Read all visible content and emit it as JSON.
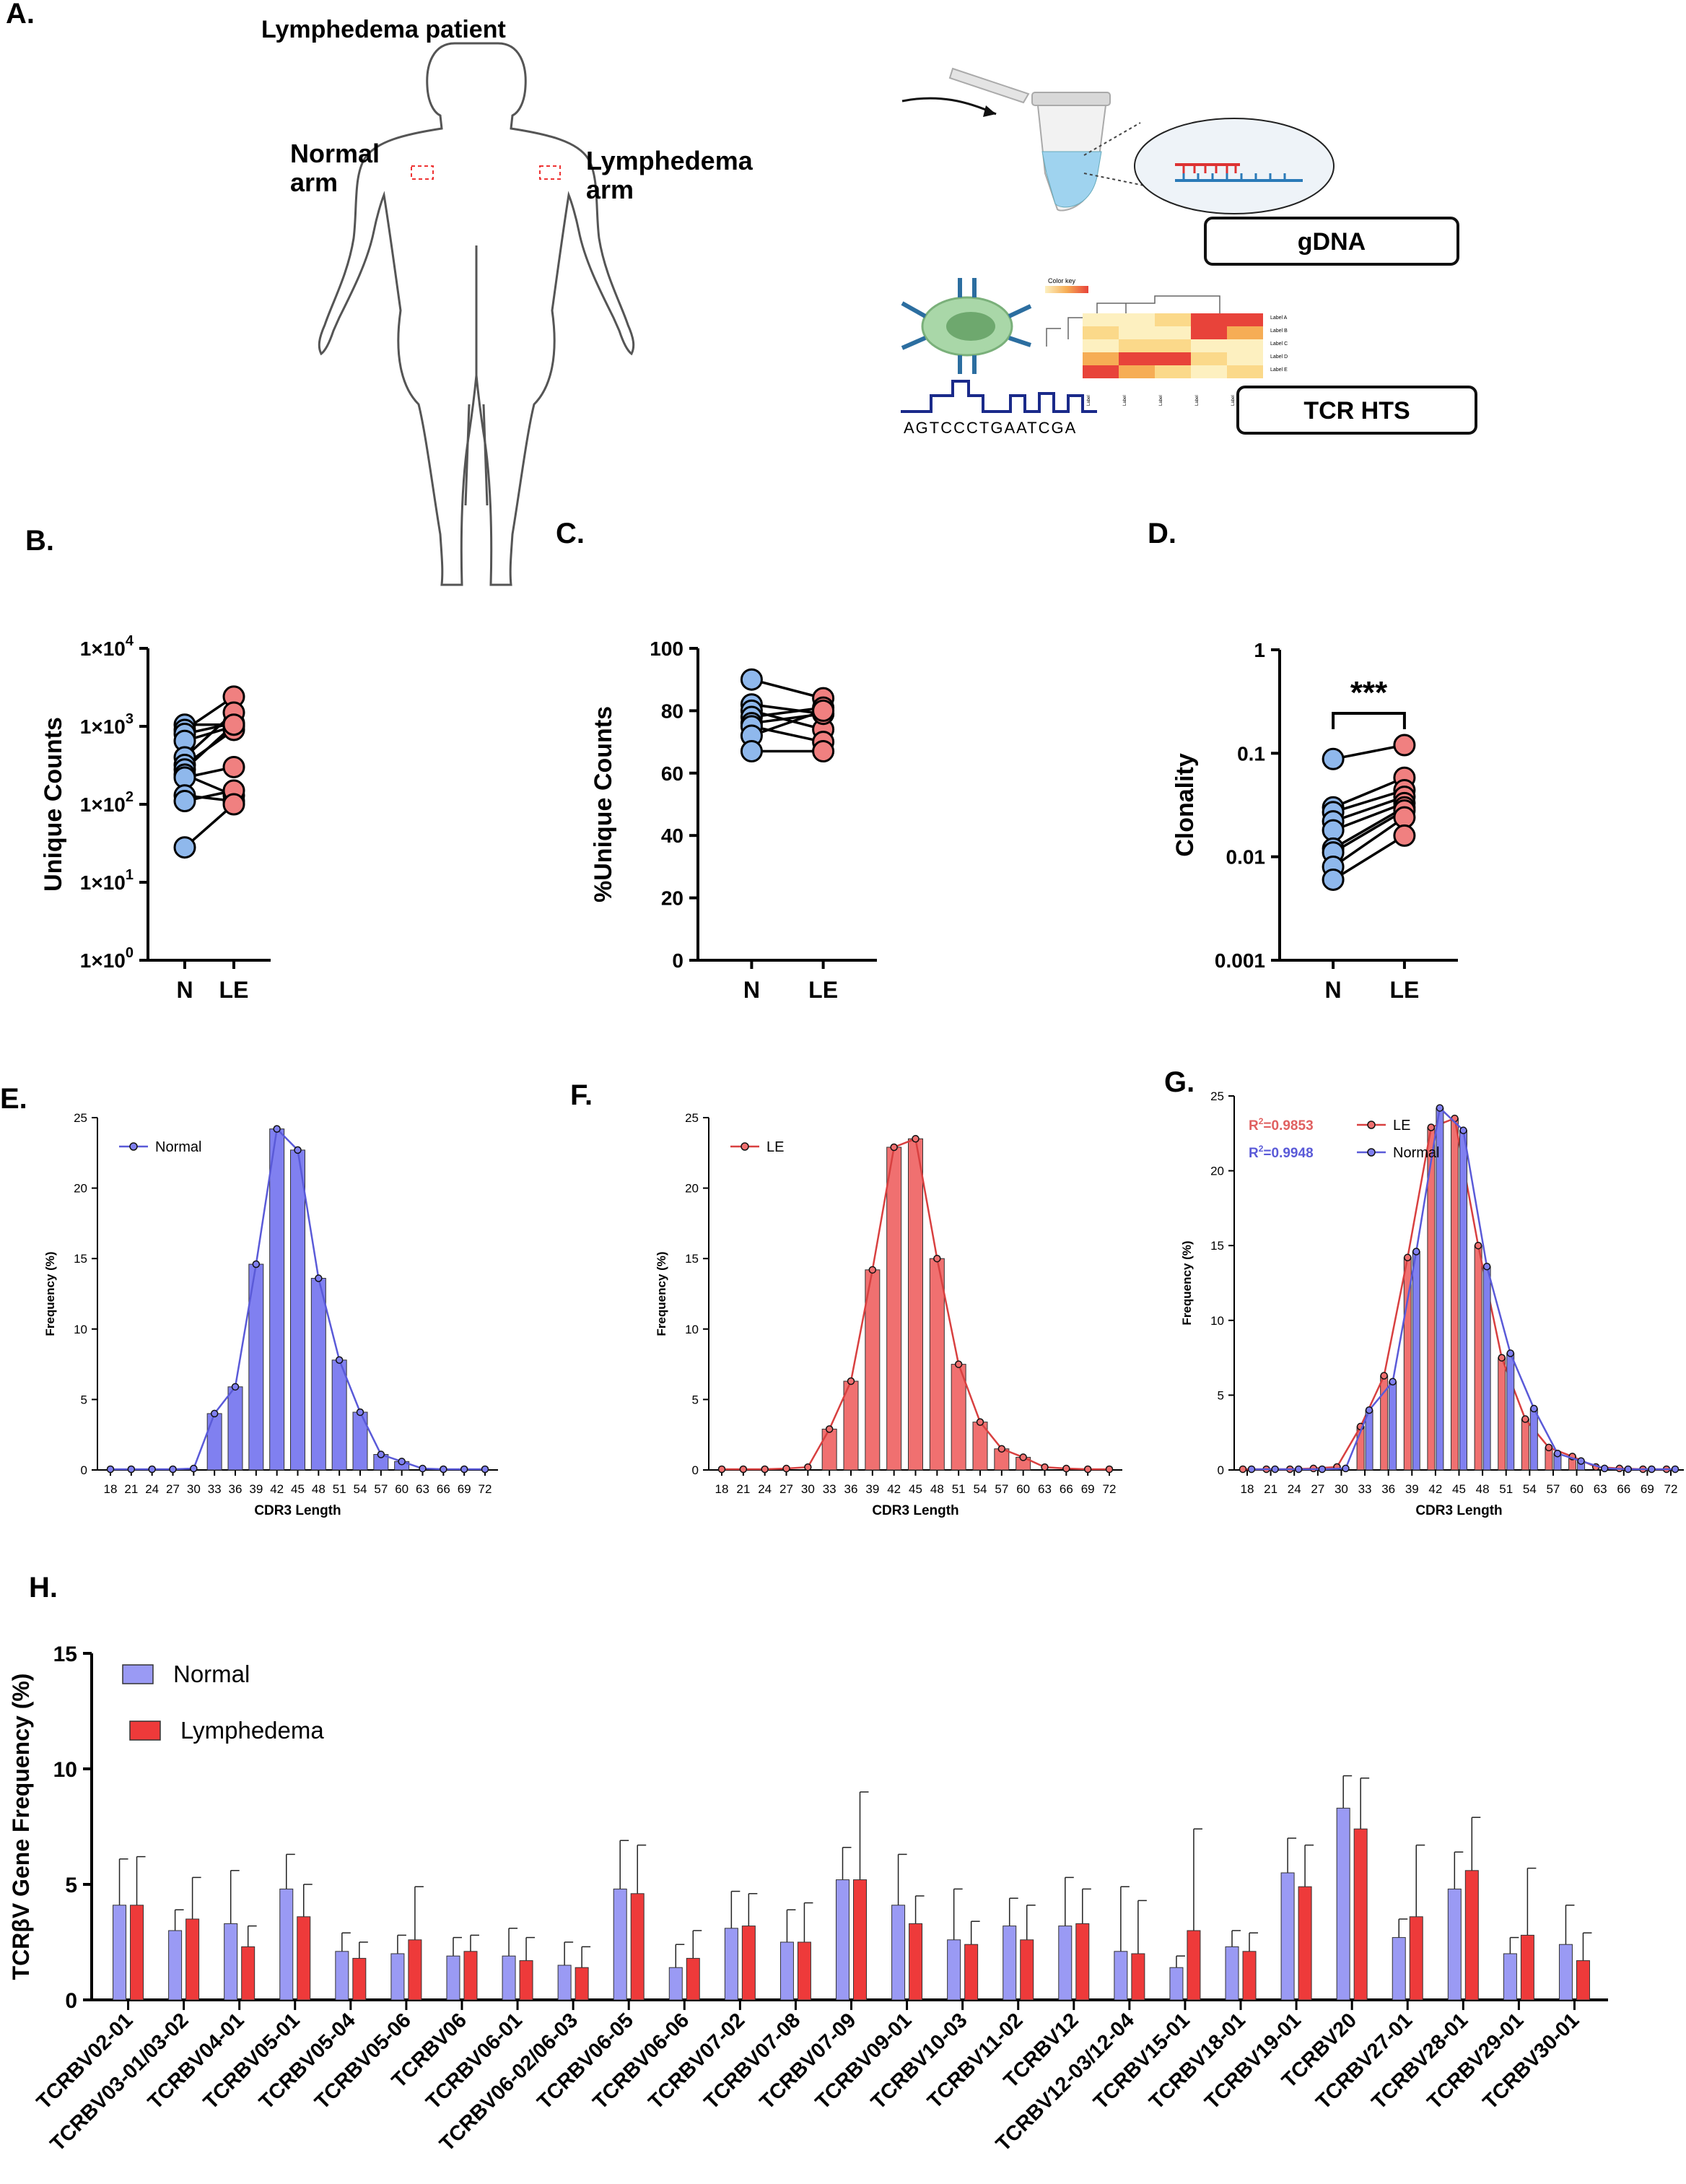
{
  "panelA": {
    "label": "A.",
    "patient": "Lymphedema patient",
    "normal_arm": [
      "Normal",
      "arm"
    ],
    "lymphedema_arm": [
      "Lymphedema",
      "arm"
    ],
    "gdna": "gDNA",
    "tcr_hts": "TCR HTS",
    "sequence": "AGTCCCTGAATCGA",
    "color_key": "Color key",
    "heatmap_rows": [
      "Label A",
      "Label B",
      "Label C",
      "Label D",
      "Label E"
    ],
    "heatmap_cols": [
      "Label",
      "Label",
      "Label",
      "Label",
      "Label"
    ],
    "colors": {
      "pale": "#fdf0c0",
      "light": "#fbd98a",
      "orange": "#f6ad55",
      "red": "#e8433a"
    }
  },
  "chart_data": [
    {
      "id": "B",
      "label": "B.",
      "type": "scatter",
      "title": "",
      "xlabel": "",
      "ylabel": "Unique Counts",
      "scale": "log",
      "ylim": [
        1,
        10000
      ],
      "yticks": [
        {
          "v": 1,
          "b": "1×10",
          "e": "0"
        },
        {
          "v": 10,
          "b": "1×10",
          "e": "1"
        },
        {
          "v": 100,
          "b": "1×10",
          "e": "2"
        },
        {
          "v": 1000,
          "b": "1×10",
          "e": "3"
        },
        {
          "v": 10000,
          "b": "1×10",
          "e": "4"
        }
      ],
      "categories": [
        "N",
        "LE"
      ],
      "colors": [
        "#8fb8ec",
        "#f08080"
      ],
      "pairs": [
        [
          1050,
          1050
        ],
        [
          900,
          2400
        ],
        [
          800,
          1100
        ],
        [
          650,
          1000
        ],
        [
          400,
          1500
        ],
        [
          320,
          900
        ],
        [
          280,
          1050
        ],
        [
          240,
          130
        ],
        [
          220,
          300
        ],
        [
          130,
          110
        ],
        [
          110,
          150
        ],
        [
          28,
          100
        ]
      ],
      "annotation": ""
    },
    {
      "id": "C",
      "label": "C.",
      "type": "scatter",
      "title": "",
      "xlabel": "",
      "ylabel": "%Unique Counts",
      "scale": "linear",
      "ylim": [
        0,
        100
      ],
      "yticks": [
        {
          "v": 0,
          "t": "0"
        },
        {
          "v": 20,
          "t": "20"
        },
        {
          "v": 40,
          "t": "40"
        },
        {
          "v": 60,
          "t": "60"
        },
        {
          "v": 80,
          "t": "80"
        },
        {
          "v": 100,
          "t": "100"
        }
      ],
      "categories": [
        "N",
        "LE"
      ],
      "colors": [
        "#8fb8ec",
        "#f08080"
      ],
      "pairs": [
        [
          90,
          84
        ],
        [
          82,
          79
        ],
        [
          80,
          74
        ],
        [
          78,
          81
        ],
        [
          76,
          79
        ],
        [
          75,
          70
        ],
        [
          72,
          80
        ],
        [
          67,
          67
        ]
      ],
      "annotation": ""
    },
    {
      "id": "D",
      "label": "D.",
      "type": "scatter",
      "title": "",
      "xlabel": "",
      "ylabel": "Clonality",
      "scale": "log",
      "ylim": [
        0.001,
        1
      ],
      "yticks": [
        {
          "v": 0.001,
          "t": "0.001"
        },
        {
          "v": 0.01,
          "t": "0.01"
        },
        {
          "v": 0.1,
          "t": "0.1"
        },
        {
          "v": 1,
          "t": "1"
        }
      ],
      "categories": [
        "N",
        "LE"
      ],
      "colors": [
        "#8fb8ec",
        "#f08080"
      ],
      "pairs": [
        [
          0.088,
          0.12
        ],
        [
          0.03,
          0.058
        ],
        [
          0.027,
          0.044
        ],
        [
          0.022,
          0.038
        ],
        [
          0.018,
          0.033
        ],
        [
          0.012,
          0.03
        ],
        [
          0.011,
          0.028
        ],
        [
          0.008,
          0.024
        ],
        [
          0.006,
          0.016
        ]
      ],
      "annotation": "***"
    },
    {
      "id": "E",
      "label": "E.",
      "type": "bar",
      "title": "",
      "xlabel": "CDR3 Length",
      "ylabel": "Frequency (%)",
      "ylim": [
        0,
        25
      ],
      "yticks": [
        0,
        5,
        10,
        15,
        20,
        25
      ],
      "categories": [
        "18",
        "21",
        "24",
        "27",
        "30",
        "33",
        "36",
        "39",
        "42",
        "45",
        "48",
        "51",
        "54",
        "57",
        "60",
        "63",
        "66",
        "69",
        "72"
      ],
      "x": [
        18,
        19,
        20,
        21,
        22,
        23,
        24,
        25,
        26,
        27,
        28,
        29,
        30,
        31,
        32,
        33,
        34,
        35,
        36,
        37,
        38,
        39,
        40,
        41,
        42,
        43,
        44,
        45,
        46,
        47,
        48,
        49,
        50,
        51,
        52,
        53,
        54,
        55,
        56,
        57,
        58,
        59,
        60,
        61,
        62,
        63,
        64,
        65,
        66,
        67,
        68,
        69,
        70,
        71,
        72
      ],
      "series": [
        {
          "name": "Normal",
          "color": "#8080f0",
          "line": "#5a5ad8",
          "points": [
            [
              18,
              0.05
            ],
            [
              21,
              0.05
            ],
            [
              24,
              0.05
            ],
            [
              27,
              0.05
            ],
            [
              30,
              0.1
            ],
            [
              33,
              4.0
            ],
            [
              36,
              5.9
            ],
            [
              39,
              14.6
            ],
            [
              42,
              24.2
            ],
            [
              45,
              22.7
            ],
            [
              48,
              13.6
            ],
            [
              51,
              7.8
            ],
            [
              54,
              4.1
            ],
            [
              57,
              1.1
            ],
            [
              60,
              0.6
            ],
            [
              63,
              0.1
            ],
            [
              66,
              0.05
            ],
            [
              69,
              0.05
            ],
            [
              72,
              0.05
            ]
          ]
        }
      ],
      "legend": "top-left",
      "r2": []
    },
    {
      "id": "F",
      "label": "F.",
      "type": "bar",
      "title": "",
      "xlabel": "CDR3 Length",
      "ylabel": "Frequency (%)",
      "ylim": [
        0,
        25
      ],
      "yticks": [
        0,
        5,
        10,
        15,
        20,
        25
      ],
      "categories": [
        "18",
        "21",
        "24",
        "27",
        "30",
        "33",
        "36",
        "39",
        "42",
        "45",
        "48",
        "51",
        "54",
        "57",
        "60",
        "63",
        "66",
        "69",
        "72"
      ],
      "series": [
        {
          "name": "LE",
          "color": "#f07070",
          "line": "#d84040",
          "points": [
            [
              18,
              0.05
            ],
            [
              21,
              0.05
            ],
            [
              24,
              0.05
            ],
            [
              27,
              0.1
            ],
            [
              30,
              0.2
            ],
            [
              33,
              2.9
            ],
            [
              36,
              6.3
            ],
            [
              39,
              14.2
            ],
            [
              42,
              22.9
            ],
            [
              45,
              23.5
            ],
            [
              48,
              15.0
            ],
            [
              51,
              7.5
            ],
            [
              54,
              3.4
            ],
            [
              57,
              1.5
            ],
            [
              60,
              0.9
            ],
            [
              63,
              0.2
            ],
            [
              66,
              0.1
            ],
            [
              69,
              0.05
            ],
            [
              72,
              0.05
            ]
          ]
        }
      ],
      "legend": "top-left",
      "r2": []
    },
    {
      "id": "G",
      "label": "G.",
      "type": "bar",
      "title": "",
      "xlabel": "CDR3 Length",
      "ylabel": "Frequency (%)",
      "ylim": [
        0,
        25
      ],
      "yticks": [
        0,
        5,
        10,
        15,
        20,
        25
      ],
      "categories": [
        "18",
        "21",
        "24",
        "27",
        "30",
        "33",
        "36",
        "39",
        "42",
        "45",
        "48",
        "51",
        "54",
        "57",
        "60",
        "63",
        "66",
        "69",
        "72"
      ],
      "series": [
        {
          "name": "LE",
          "color": "#f07070",
          "line": "#d84040",
          "points": [
            [
              18,
              0.05
            ],
            [
              21,
              0.05
            ],
            [
              24,
              0.05
            ],
            [
              27,
              0.1
            ],
            [
              30,
              0.2
            ],
            [
              33,
              2.9
            ],
            [
              36,
              6.3
            ],
            [
              39,
              14.2
            ],
            [
              42,
              22.9
            ],
            [
              45,
              23.5
            ],
            [
              48,
              15.0
            ],
            [
              51,
              7.5
            ],
            [
              54,
              3.4
            ],
            [
              57,
              1.5
            ],
            [
              60,
              0.9
            ],
            [
              63,
              0.2
            ],
            [
              66,
              0.1
            ],
            [
              69,
              0.05
            ],
            [
              72,
              0.05
            ]
          ]
        },
        {
          "name": "Normal",
          "color": "#8080f0",
          "line": "#5a5ad8",
          "points": [
            [
              18,
              0.05
            ],
            [
              21,
              0.05
            ],
            [
              24,
              0.05
            ],
            [
              27,
              0.05
            ],
            [
              30,
              0.1
            ],
            [
              33,
              4.0
            ],
            [
              36,
              5.9
            ],
            [
              39,
              14.6
            ],
            [
              42,
              24.2
            ],
            [
              45,
              22.7
            ],
            [
              48,
              13.6
            ],
            [
              51,
              7.8
            ],
            [
              54,
              4.1
            ],
            [
              57,
              1.1
            ],
            [
              60,
              0.6
            ],
            [
              63,
              0.1
            ],
            [
              66,
              0.05
            ],
            [
              69,
              0.05
            ],
            [
              72,
              0.05
            ]
          ]
        }
      ],
      "legend": "top-left",
      "r2": [
        {
          "text": "=0.9853",
          "color": "#e06060"
        },
        {
          "text": "=0.9948",
          "color": "#5a5ad8"
        }
      ]
    },
    {
      "id": "H",
      "label": "H.",
      "type": "bar",
      "title": "",
      "xlabel": "",
      "ylabel": "TCRβV Gene Frequency (%)",
      "ylim": [
        0,
        15
      ],
      "yticks": [
        0,
        5,
        10,
        15
      ],
      "categories": [
        "TCRBV02-01",
        "TCRBV03-01/03-02",
        "TCRBV04-01",
        "TCRBV05-01",
        "TCRBV05-04",
        "TCRBV05-06",
        "TCRBV06",
        "TCRBV06-01",
        "TCRBV06-02/06-03",
        "TCRBV06-05",
        "TCRBV06-06",
        "TCRBV07-02",
        "TCRBV07-08",
        "TCRBV07-09",
        "TCRBV09-01",
        "TCRBV10-03",
        "TCRBV11-02",
        "TCRBV12",
        "TCRBV12-03/12-04",
        "TCRBV15-01",
        "TCRBV18-01",
        "TCRBV19-01",
        "TCRBV20",
        "TCRBV27-01",
        "TCRBV28-01",
        "TCRBV29-01",
        "TCRBV30-01"
      ],
      "series": [
        {
          "name": "Normal",
          "color": "#9a9af4",
          "values": [
            4.1,
            3.0,
            3.3,
            4.8,
            2.1,
            2.0,
            1.9,
            1.9,
            1.5,
            4.8,
            1.4,
            3.1,
            2.5,
            5.2,
            4.1,
            2.6,
            3.2,
            3.2,
            2.1,
            1.4,
            2.3,
            5.5,
            8.3,
            2.7,
            4.8,
            2.0,
            2.4
          ],
          "errors": [
            2.0,
            0.9,
            2.3,
            1.5,
            0.8,
            0.8,
            0.8,
            1.2,
            1.0,
            2.1,
            1.0,
            1.6,
            1.4,
            1.4,
            2.2,
            2.2,
            1.2,
            2.1,
            2.8,
            0.5,
            0.7,
            1.5,
            1.4,
            0.8,
            1.6,
            0.7,
            1.7
          ]
        },
        {
          "name": "Lymphedema",
          "color": "#ee3a3a",
          "values": [
            4.1,
            3.5,
            2.3,
            3.6,
            1.8,
            2.6,
            2.1,
            1.7,
            1.4,
            4.6,
            1.8,
            3.2,
            2.5,
            5.2,
            3.3,
            2.4,
            2.6,
            3.3,
            2.0,
            3.0,
            2.1,
            4.9,
            7.4,
            3.6,
            5.6,
            2.8,
            1.7
          ],
          "errors": [
            2.1,
            1.8,
            0.9,
            1.4,
            0.7,
            2.3,
            0.7,
            1.0,
            0.9,
            2.1,
            1.2,
            1.4,
            1.7,
            3.8,
            1.2,
            1.0,
            1.5,
            1.5,
            2.3,
            4.4,
            0.8,
            1.8,
            2.2,
            3.1,
            2.3,
            2.9,
            1.2
          ]
        }
      ],
      "legend": "top-left"
    }
  ]
}
